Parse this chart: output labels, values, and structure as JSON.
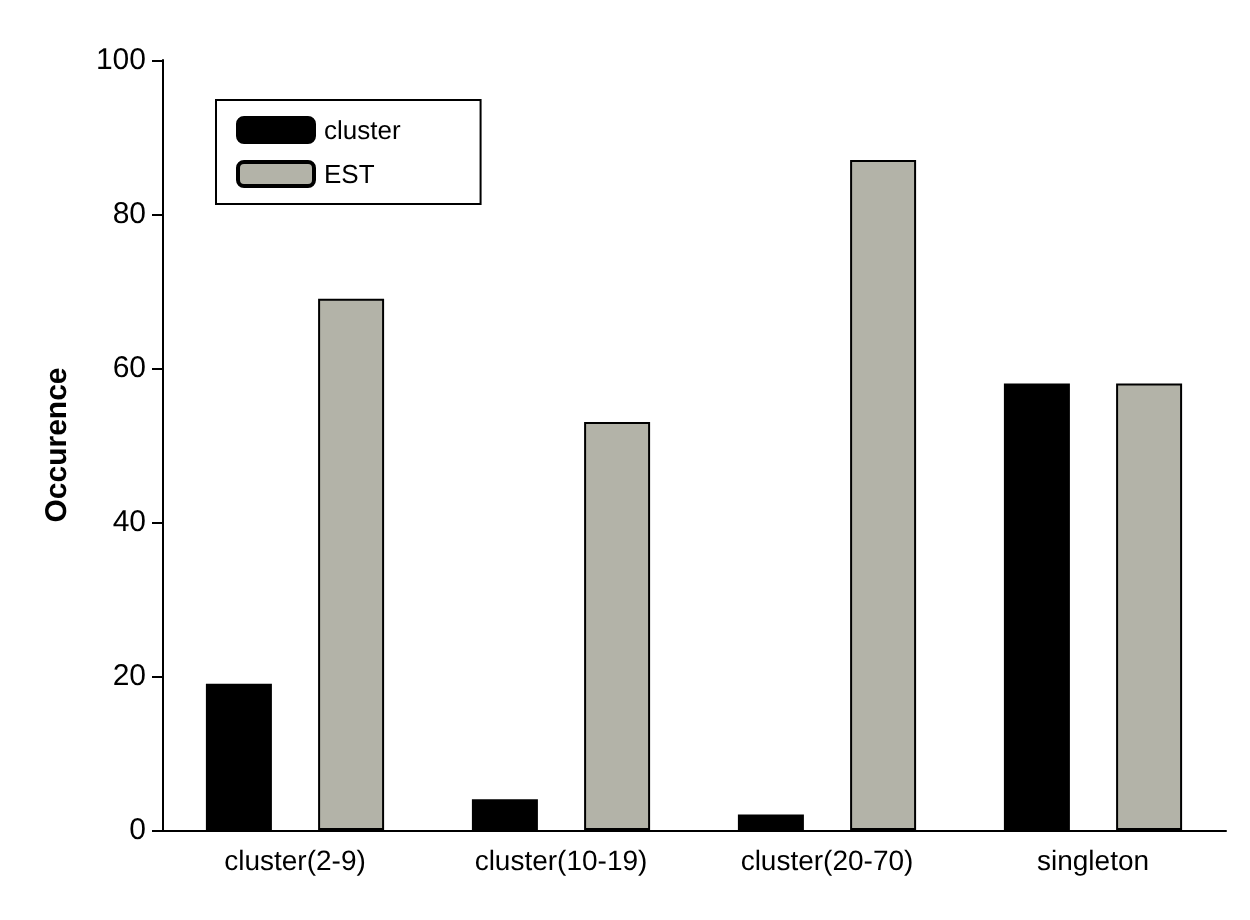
{
  "chart_data": {
    "type": "bar",
    "ylabel": "Occurence",
    "categories": [
      "cluster(2-9)",
      "cluster(10-19)",
      "cluster(20-70)",
      "singleton"
    ],
    "series": [
      {
        "name": "cluster",
        "color": "#000000",
        "values": [
          19,
          4,
          2,
          58
        ]
      },
      {
        "name": "EST",
        "color": "#b3b3a8",
        "values": [
          69,
          53,
          87,
          58
        ]
      }
    ],
    "ylim": [
      0,
      100
    ],
    "yticks": [
      0,
      20,
      40,
      60,
      80,
      100
    ],
    "grid": false,
    "legend": "top left"
  }
}
